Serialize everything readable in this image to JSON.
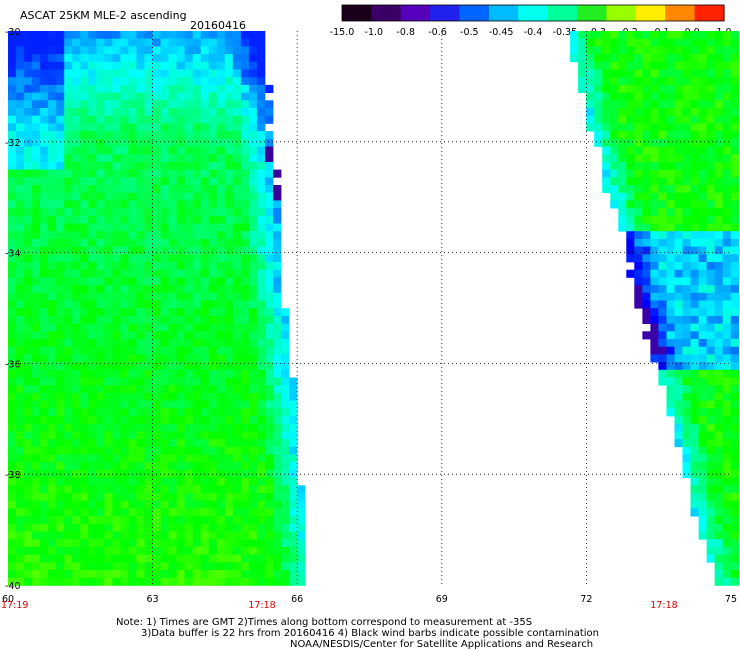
{
  "header": {
    "title": "ASCAT 25KM MLE-2 ascending",
    "date": "20160416"
  },
  "legend": {
    "labels": [
      "-15.0",
      "-1.0",
      "-0.8",
      "-0.6",
      "-0.5",
      "-0.45",
      "-0.4",
      "-0.35",
      "-0.3",
      "-0.2",
      "-0.1",
      "0.0",
      "1.0"
    ],
    "colors": [
      "#1a001a",
      "#3a0066",
      "#5500bb",
      "#2222ee",
      "#0066ff",
      "#00bbff",
      "#00ffee",
      "#00ff99",
      "#22ee22",
      "#99ff00",
      "#ffee00",
      "#ff8800",
      "#ff2200"
    ]
  },
  "map": {
    "lon_ticks": [
      "60",
      "63",
      "66",
      "69",
      "72",
      "75"
    ],
    "lat_ticks": [
      "-30",
      "-32",
      "-34",
      "-36",
      "-38",
      "-40"
    ],
    "times": [
      "17:19",
      "17:18",
      "17:18"
    ],
    "time_color": "#dd0000",
    "left_swath_edge_lon": [
      65.2,
      66.2
    ],
    "right_swath_edge_lon": [
      71.5,
      74.6
    ],
    "lat_range": [
      -40,
      -30
    ],
    "lon_range": [
      60,
      75
    ]
  },
  "notes": {
    "line1": "Note: 1) Times are GMT 2)Times along bottom correspond to measurement at -35S",
    "line2": "3)Data buffer is 22 hrs from 20160416 4) Black wind barbs indicate possible contamination",
    "line3": "NOAA/NESDIS/Center for Satellite Applications and Research"
  }
}
